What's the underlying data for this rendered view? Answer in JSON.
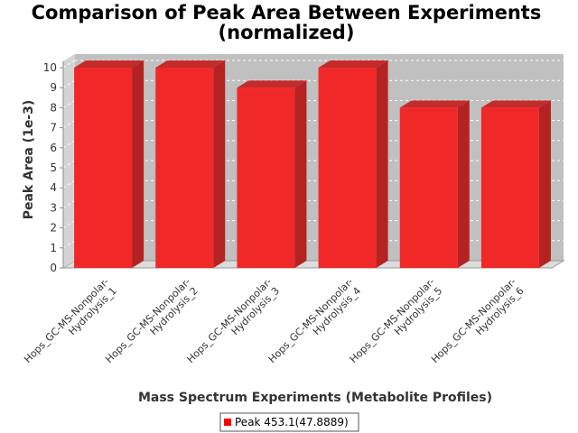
{
  "chart_data": {
    "type": "bar",
    "title_lines": [
      "Comparison of Peak Area Between Experiments",
      "(normalized)"
    ],
    "xlabel": "Mass Spectrum Experiments (Metabolite Profiles)",
    "ylabel": "Peak Area (1e-3)",
    "ylim": [
      0,
      10
    ],
    "yticks": [
      "0",
      "1",
      "2",
      "3",
      "4",
      "5",
      "6",
      "7",
      "8",
      "9",
      "10"
    ],
    "categories": [
      [
        "Hops_GC-MS-Nonpolar-",
        "Hydrolysis_1"
      ],
      [
        "Hops_GC-MS-Nonpolar-",
        "Hydrolysis_2"
      ],
      [
        "Hops_GC-MS-Nonpolar-",
        "Hydrolysis_3"
      ],
      [
        "Hops_GC-MS-Nonpolar-",
        "Hydrolysis_4"
      ],
      [
        "Hops_GC-MS-Nonpolar-",
        "Hydrolysis_5"
      ],
      [
        "Hops_GC-MS-Nonpolar-",
        "Hydrolysis_6"
      ]
    ],
    "series": [
      {
        "name": "Peak 453.1(47.8889)",
        "values": [
          10,
          10,
          9,
          10,
          8,
          8
        ]
      }
    ],
    "grid": true,
    "legend": "bottom-center",
    "colors": {
      "bar_front": "#f02828",
      "bar_top": "#c42b2b",
      "bar_side": "#b52222",
      "plot_back": "#c0c0c0",
      "plot_floor": "#dcdcdc",
      "legend_swatch": "#ff0000"
    }
  }
}
